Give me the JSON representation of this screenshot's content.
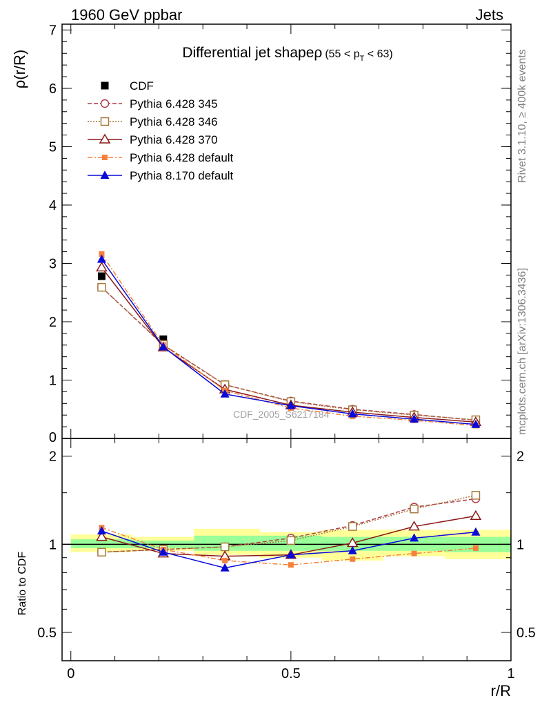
{
  "header": {
    "left_label": "1960 GeV ppbar",
    "right_label": "Jets",
    "side_label_top": "Rivet 3.1.10, ≥ 400k events",
    "side_label_bottom": "mcplots.cern.ch [arXiv:1306.3436]",
    "watermark": "CDF_2005_S6217184"
  },
  "chart_data": [
    {
      "type": "line",
      "title": "Differential jet shape",
      "title_symbol": "ρ",
      "title_range": "(55 < p",
      "title_range_sub": "T",
      "title_range_end": " < 63)",
      "ylabel": "ρ(r/R)",
      "xlabel": "",
      "xlim": [
        -0.02,
        1.0
      ],
      "ylim": [
        0,
        7.1
      ],
      "yticks": [
        "1",
        "2",
        "3",
        "4",
        "5",
        "6",
        "7"
      ],
      "yticks_partial_zero": "0",
      "legend_position": "top-left",
      "x": [
        0.07,
        0.21,
        0.35,
        0.5,
        0.64,
        0.78,
        0.92
      ],
      "series": [
        {
          "name": "CDF",
          "color": "#000000",
          "marker": "square-filled",
          "dash": "none",
          "line": false,
          "values": [
            2.78,
            1.7,
            0.93,
            0.62,
            0.46,
            0.35,
            0.25
          ]
        },
        {
          "name": "Pythia 6.428 345",
          "color": "#b03a48",
          "marker": "circle-open",
          "dash": "6,3",
          "values": [
            2.59,
            1.6,
            0.92,
            0.64,
            0.5,
            0.41,
            0.31
          ]
        },
        {
          "name": "Pythia 6.428 346",
          "color": "#a6793b",
          "marker": "square-open",
          "dash": "2,2",
          "values": [
            2.59,
            1.61,
            0.92,
            0.63,
            0.49,
            0.4,
            0.32
          ]
        },
        {
          "name": "Pythia 6.428 370",
          "color": "#8b1a1a",
          "marker": "triangle-open",
          "dash": "none",
          "values": [
            2.93,
            1.56,
            0.84,
            0.57,
            0.45,
            0.36,
            0.28
          ]
        },
        {
          "name": "Pythia 6.428 default",
          "color": "#f5813c",
          "marker": "square-small",
          "dash": "7,3,2,3",
          "values": [
            3.16,
            1.6,
            0.82,
            0.52,
            0.38,
            0.31,
            0.22
          ]
        },
        {
          "name": "Pythia 8.170 default",
          "color": "#0a0ad8",
          "marker": "triangle-filled",
          "dash": "none",
          "values": [
            3.07,
            1.57,
            0.76,
            0.56,
            0.42,
            0.33,
            0.24
          ]
        }
      ]
    },
    {
      "type": "line",
      "title": "",
      "ylabel": "Ratio to CDF",
      "xlabel": "r/R",
      "xlim": [
        -0.02,
        1.0
      ],
      "ylim": [
        0.4,
        2.3
      ],
      "yticks": [
        "0.5",
        "1",
        "2"
      ],
      "xticks": [
        "0",
        "0.5",
        "1"
      ],
      "reference_line": 1.0,
      "band_x_edges": [
        0.0,
        0.14,
        0.28,
        0.43,
        0.57,
        0.71,
        0.85,
        1.0
      ],
      "band_yellow": [
        [
          0.94,
          1.08
        ],
        [
          0.95,
          1.06
        ],
        [
          0.92,
          1.13
        ],
        [
          0.9,
          1.1
        ],
        [
          0.88,
          1.12
        ],
        [
          0.91,
          1.12
        ],
        [
          0.89,
          1.12
        ]
      ],
      "band_green": [
        [
          0.97,
          1.04
        ],
        [
          0.97,
          1.03
        ],
        [
          0.95,
          1.07
        ],
        [
          0.95,
          1.07
        ],
        [
          0.95,
          1.06
        ],
        [
          0.95,
          1.06
        ],
        [
          0.94,
          1.06
        ]
      ],
      "x": [
        0.07,
        0.21,
        0.35,
        0.5,
        0.64,
        0.78,
        0.92
      ],
      "series": [
        {
          "name": "Pythia 6.428 345",
          "color": "#b03a48",
          "marker": "circle-open",
          "dash": "6,3",
          "values": [
            0.94,
            0.96,
            0.98,
            1.05,
            1.16,
            1.34,
            1.43
          ]
        },
        {
          "name": "Pythia 6.428 346",
          "color": "#a6793b",
          "marker": "square-open",
          "dash": "2,2",
          "values": [
            0.94,
            0.96,
            0.98,
            1.03,
            1.15,
            1.32,
            1.47
          ]
        },
        {
          "name": "Pythia 6.428 370",
          "color": "#8b1a1a",
          "marker": "triangle-open",
          "dash": "none",
          "values": [
            1.06,
            0.93,
            0.91,
            0.92,
            1.01,
            1.15,
            1.25
          ]
        },
        {
          "name": "Pythia 6.428 default",
          "color": "#f5813c",
          "marker": "square-small",
          "dash": "7,3,2,3",
          "values": [
            1.14,
            0.96,
            0.88,
            0.85,
            0.89,
            0.93,
            0.97
          ]
        },
        {
          "name": "Pythia 8.170 default",
          "color": "#0a0ad8",
          "marker": "triangle-filled",
          "dash": "none",
          "values": [
            1.11,
            0.94,
            0.83,
            0.92,
            0.95,
            1.05,
            1.1
          ]
        }
      ]
    }
  ]
}
